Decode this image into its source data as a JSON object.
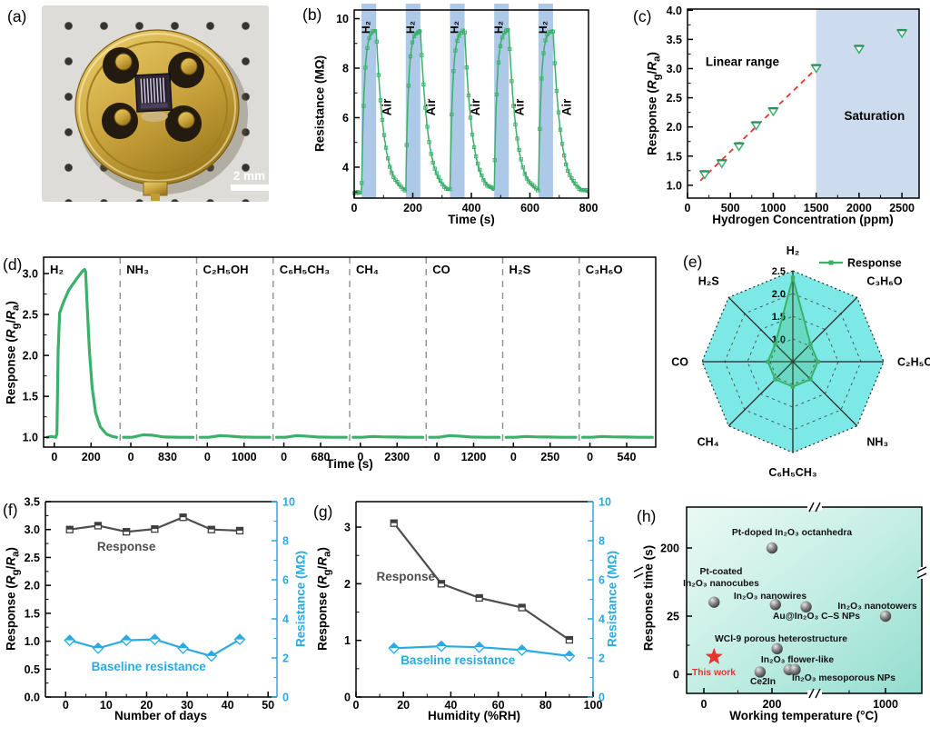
{
  "colors": {
    "green": "#3bb06a",
    "dark_gray": "#4d4d4d",
    "blue": "#29abe2",
    "band_blue": "#aec9e7",
    "saturation_blue": "#ccdcee",
    "radar_cyan": "#7ce9e7",
    "red": "#e8352c",
    "separator_gray": "#909090"
  },
  "panels": {
    "a": {
      "label": "(a)",
      "scale_text": "2 mm"
    },
    "b": {
      "label": "(b)"
    },
    "c": {
      "label": "(c)"
    },
    "d": {
      "label": "(d)"
    },
    "e": {
      "label": "(e)"
    },
    "f": {
      "label": "(f)"
    },
    "g": {
      "label": "(g)"
    },
    "h": {
      "label": "(h)"
    }
  },
  "chart_data": [
    {
      "panel": "b",
      "type": "line",
      "xlabel": "Time (s)",
      "ylabel": "Resistance (MΩ)",
      "xlim": [
        0,
        800
      ],
      "xticks": [
        0,
        200,
        400,
        600,
        800
      ],
      "x_minor_ticks": [
        100,
        300,
        500,
        700
      ],
      "ylim": [
        2.75,
        10.35
      ],
      "yticks": [
        4,
        6,
        8,
        10
      ],
      "y_minor_ticks": [
        3,
        5,
        7,
        9
      ],
      "baseline_mohm": 2.95,
      "peak_mohm": 9.55,
      "h2_pulse_windows_s": [
        [
          25,
          75
        ],
        [
          176,
          226
        ],
        [
          327,
          377
        ],
        [
          478,
          528
        ],
        [
          629,
          679
        ]
      ],
      "pulse_label": "H₂",
      "recovery_label": "Air"
    },
    {
      "panel": "c",
      "type": "scatter",
      "xlabel": "Hydrogen Concentration (ppm)",
      "ylabel": "Response (R_g/R_a)",
      "xlim": [
        0,
        2700
      ],
      "xticks": [
        0,
        500,
        1000,
        1500,
        2000,
        2500
      ],
      "ylim": [
        0.78,
        4.02
      ],
      "yticks": [
        1.0,
        1.5,
        2.0,
        2.5,
        3.0,
        3.5,
        4.0
      ],
      "x": [
        200,
        400,
        600,
        800,
        1000,
        1500,
        2000,
        2500
      ],
      "y": [
        1.19,
        1.38,
        1.67,
        2.03,
        2.27,
        3.01,
        3.34,
        3.61
      ],
      "fit_line": {
        "x1": 150,
        "y1": 1.08,
        "x2": 1500,
        "y2": 3.0
      },
      "saturation_from_ppm": 1500,
      "annotations": [
        {
          "text": "Linear range",
          "x": 640,
          "y": 3.05
        },
        {
          "text": "Saturation",
          "x": 2180,
          "y": 2.12
        }
      ]
    },
    {
      "panel": "d",
      "type": "line",
      "xlabel": "Time (s)",
      "ylabel": "Response (R_g/R_a)",
      "ylim": [
        0.88,
        3.2
      ],
      "yticks": [
        1.0,
        1.5,
        2.0,
        2.5,
        3.0
      ],
      "segments": [
        {
          "gas": "H₂",
          "t_end": "200",
          "peak": 3.05
        },
        {
          "gas": "NH₃",
          "t_end": "830",
          "peak": 1.03
        },
        {
          "gas": "C₂H₅OH",
          "t_end": "1000",
          "peak": 1.02
        },
        {
          "gas": "C₆H₅CH₃",
          "t_end": "680",
          "peak": 1.02
        },
        {
          "gas": "CH₄",
          "t_end": "2300",
          "peak": 1.01
        },
        {
          "gas": "CO",
          "t_end": "1200",
          "peak": 1.02
        },
        {
          "gas": "H₂S",
          "t_end": "250",
          "peak": 1.01
        },
        {
          "gas": "C₃H₆O",
          "t_end": "540",
          "peak": 1.01
        }
      ]
    },
    {
      "panel": "e",
      "type": "radar",
      "legend": "Response",
      "axes": [
        "H₂",
        "C₃H₆O",
        "C₂H₅OH",
        "NH₃",
        "C₆H₅CH₃",
        "CH₄",
        "CO",
        "H₂S"
      ],
      "values": [
        2.35,
        1.05,
        1.05,
        1.05,
        1.05,
        1.05,
        1.05,
        1.05
      ],
      "ring_values": [
        1.0,
        1.5,
        2.0,
        2.5
      ],
      "center_value": 0.5
    },
    {
      "panel": "f",
      "type": "line",
      "xlabel": "Number of days",
      "ylabel_left": "Response (R_g/R_a)",
      "ylabel_right": "Resistance (MΩ)",
      "xlim": [
        -5,
        52.2
      ],
      "xticks": [
        0,
        10,
        20,
        30,
        40,
        50
      ],
      "ylim_left": [
        0,
        3.5
      ],
      "yticks_left": [
        "0.0",
        "0.5",
        "1.0",
        "1.5",
        "2.0",
        "2.5",
        "3.0",
        "3.5"
      ],
      "ylim_right": [
        0,
        10
      ],
      "yticks_right": [
        0,
        2,
        4,
        6,
        8,
        10
      ],
      "x": [
        1,
        8,
        15,
        22,
        29,
        36,
        43
      ],
      "series": [
        {
          "name": "Response",
          "axis": "left",
          "marker": "square",
          "values": [
            3.0,
            3.07,
            2.96,
            3.01,
            3.22,
            3.0,
            2.98
          ]
        },
        {
          "name": "Baseline resistance",
          "axis": "right",
          "marker": "diamond",
          "values": [
            2.9,
            2.5,
            2.9,
            2.95,
            2.5,
            2.1,
            2.95
          ]
        }
      ],
      "annotations": [
        {
          "text": "Response",
          "x": 15,
          "y": 2.62,
          "color": "dark"
        },
        {
          "text": "Baseline resistance",
          "x": 20.5,
          "y": 0.47,
          "color": "blue"
        }
      ]
    },
    {
      "panel": "g",
      "type": "line",
      "xlabel": "Humidity (%RH)",
      "ylabel_left": "Response (R_g/R_a)",
      "ylabel_right": "Resistance (MΩ)",
      "xlim": [
        0,
        100
      ],
      "xticks": [
        0,
        20,
        40,
        60,
        80,
        100
      ],
      "ylim_left": [
        0,
        3.45
      ],
      "yticks_left": [
        0,
        1,
        2,
        3
      ],
      "ylim_right": [
        0,
        10
      ],
      "yticks_right": [
        0,
        2,
        4,
        6,
        8,
        10
      ],
      "x": [
        16,
        36,
        52,
        70,
        90
      ],
      "series": [
        {
          "name": "Response",
          "axis": "left",
          "marker": "square",
          "values": [
            3.07,
            2.0,
            1.75,
            1.58,
            1.01
          ]
        },
        {
          "name": "Baseline resistance",
          "axis": "right",
          "marker": "diamond",
          "values": [
            2.5,
            2.6,
            2.55,
            2.4,
            2.1
          ]
        }
      ],
      "annotations": [
        {
          "text": "Response",
          "x": 21,
          "y": 2.05,
          "color": "dark"
        },
        {
          "text": "Baseline resistance",
          "x": 43,
          "y": 0.58,
          "color": "blue"
        }
      ]
    },
    {
      "panel": "h",
      "type": "scatter",
      "xlabel": "Working temperature (°C)",
      "ylabel": "Response time (s)",
      "xticks": [
        0,
        200,
        1000
      ],
      "yticks": [
        0,
        25,
        200
      ],
      "axis_breaks": {
        "x": true,
        "y": true
      },
      "points": [
        {
          "label": "Pt-doped In₂O₃ octanhedra",
          "x": 200,
          "y": 200
        },
        {
          "label": "Pt-coated In₂O₃ nanocubes",
          "x": 30,
          "y": 31
        },
        {
          "label": "In₂O₃ nanowires",
          "x": 210,
          "y": 30
        },
        {
          "label": "Au@In₂O₃ C–S NPs",
          "x": 300,
          "y": 29
        },
        {
          "label": "In₂O₃ nanotowers",
          "x": 1000,
          "y": 25
        },
        {
          "label": "WCl-9 porous heterostructure",
          "x": 215,
          "y": 11
        },
        {
          "label": "Ce2In",
          "x": 165,
          "y": 1
        },
        {
          "label": "In₂O₃ flower-like",
          "x": 250,
          "y": 2
        },
        {
          "label": "In₂O₃ mesoporous NPs",
          "x": 268,
          "y": 2
        }
      ],
      "highlight": {
        "label": "This work",
        "x": 30,
        "y": 7.5
      }
    }
  ]
}
